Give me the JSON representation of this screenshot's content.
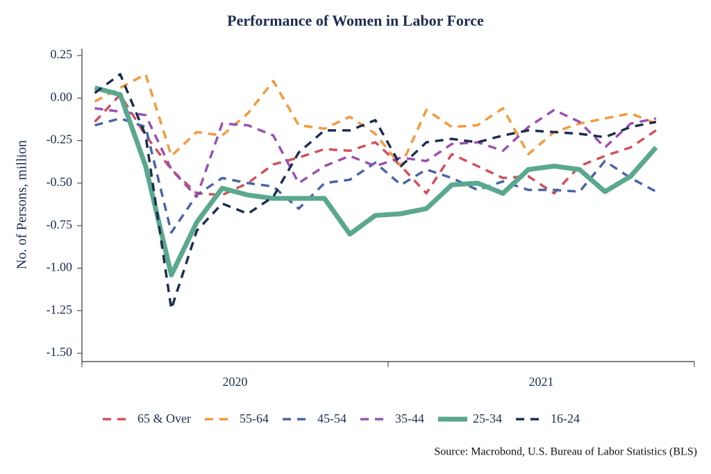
{
  "chart_data": {
    "type": "line",
    "title": "Performance of Women in Labor Force",
    "y_label": "No. of Persons, million",
    "source": "Source: Macrobond, U.S. Bureau of Labor Statistics (BLS)",
    "x": [
      2020.042,
      2020.125,
      2020.208,
      2020.292,
      2020.375,
      2020.458,
      2020.542,
      2020.625,
      2020.708,
      2020.792,
      2020.875,
      2020.958,
      2021.042,
      2021.125,
      2021.208,
      2021.292,
      2021.375,
      2021.458,
      2021.542,
      2021.625,
      2021.708,
      2021.792,
      2021.875
    ],
    "xlim": [
      2020,
      2022
    ],
    "xticks": [
      2020,
      2021,
      2022
    ],
    "year_labels": [
      {
        "value": 2020.5,
        "label": "2020"
      },
      {
        "value": 2021.5,
        "label": "2021"
      }
    ],
    "ylim": [
      -1.5,
      0.25
    ],
    "yticks": [
      0.25,
      {
        "value": 0,
        "label": "0.00"
      },
      -0.25,
      {
        "value": -0.5,
        "label": "-0.50"
      },
      -0.75,
      {
        "value": -1,
        "label": "-1.00"
      },
      -1.25,
      {
        "value": -1.5,
        "label": "-1.50"
      }
    ],
    "legend": "bottom",
    "series": [
      {
        "name": "65 & Over",
        "color": "#d0505a",
        "style": "dashed",
        "values": [
          -0.14,
          0.02,
          -0.22,
          -0.42,
          -0.56,
          -0.57,
          -0.5,
          -0.39,
          -0.35,
          -0.3,
          -0.31,
          -0.26,
          -0.4,
          -0.56,
          -0.33,
          -0.4,
          -0.47,
          -0.46,
          -0.56,
          -0.4,
          -0.34,
          -0.29,
          -0.19
        ]
      },
      {
        "name": "55-64",
        "color": "#f5993b",
        "style": "dashed",
        "values": [
          -0.02,
          0.06,
          0.14,
          -0.34,
          -0.2,
          -0.22,
          -0.09,
          0.1,
          -0.16,
          -0.18,
          -0.11,
          -0.21,
          -0.4,
          -0.07,
          -0.17,
          -0.16,
          -0.06,
          -0.33,
          -0.2,
          -0.15,
          -0.12,
          -0.09,
          -0.15
        ]
      },
      {
        "name": "45-54",
        "color": "#4a64a8",
        "style": "dashed",
        "values": [
          -0.16,
          -0.12,
          -0.17,
          -0.79,
          -0.57,
          -0.47,
          -0.5,
          -0.52,
          -0.65,
          -0.5,
          -0.48,
          -0.38,
          -0.51,
          -0.42,
          -0.47,
          -0.54,
          -0.49,
          -0.54,
          -0.54,
          -0.55,
          -0.37,
          -0.47,
          -0.55
        ]
      },
      {
        "name": "35-44",
        "color": "#9a4fb0",
        "style": "dashed",
        "values": [
          -0.06,
          -0.08,
          -0.1,
          -0.42,
          -0.58,
          -0.15,
          -0.16,
          -0.22,
          -0.5,
          -0.4,
          -0.34,
          -0.4,
          -0.35,
          -0.37,
          -0.27,
          -0.26,
          -0.31,
          -0.17,
          -0.07,
          -0.14,
          -0.29,
          -0.15,
          -0.12
        ]
      },
      {
        "name": "25-34",
        "color": "#5aa88e",
        "style": "solid",
        "values": [
          0.06,
          0.02,
          -0.4,
          -1.04,
          -0.73,
          -0.53,
          -0.57,
          -0.59,
          -0.59,
          -0.59,
          -0.8,
          -0.69,
          -0.68,
          -0.65,
          -0.51,
          -0.5,
          -0.56,
          -0.42,
          -0.4,
          -0.42,
          -0.55,
          -0.46,
          -0.29
        ]
      },
      {
        "name": "16-24",
        "color": "#1c2e4f",
        "style": "dashed",
        "values": [
          0.03,
          0.14,
          -0.22,
          -1.24,
          -0.78,
          -0.62,
          -0.68,
          -0.58,
          -0.32,
          -0.19,
          -0.19,
          -0.13,
          -0.4,
          -0.26,
          -0.24,
          -0.26,
          -0.22,
          -0.19,
          -0.2,
          -0.21,
          -0.23,
          -0.17,
          -0.14
        ]
      }
    ]
  }
}
